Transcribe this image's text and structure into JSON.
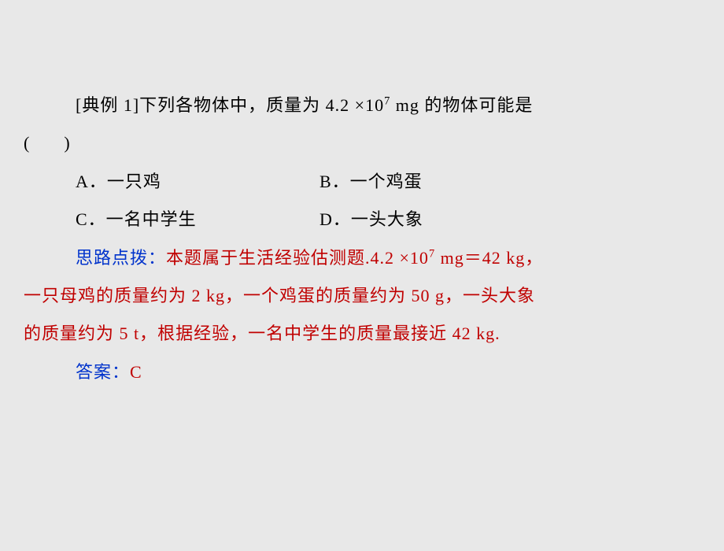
{
  "question": {
    "prefix": "[典例 1]",
    "text1": "下列各物体中，质量为 4.2 ×10",
    "exp": "7",
    "text2": " mg 的物体可能是",
    "paren": "(　　)"
  },
  "options": {
    "a": "A．一只鸡",
    "b": "B．一个鸡蛋",
    "c": "C．一名中学生",
    "d": "D．一头大象"
  },
  "analysis": {
    "label": "思路点拨：",
    "line1a": "本题属于生活经验估测题.4.2 ×10",
    "line1exp": "7",
    "line1b": " mg＝42 kg，",
    "line2": "一只母鸡的质量约为 2 kg，一个鸡蛋的质量约为 50 g，一头大象",
    "line3": "的质量约为 5 t，根据经验，一名中学生的质量最接近 42 kg."
  },
  "answer": {
    "label": "答案：",
    "value": "C"
  },
  "colors": {
    "background": "#e8e8e8",
    "text_black": "#000000",
    "text_blue": "#0033cc",
    "text_red": "#c00000"
  },
  "typography": {
    "font_family": "SimSun",
    "font_size_pt": 18,
    "line_height": 2.2
  }
}
